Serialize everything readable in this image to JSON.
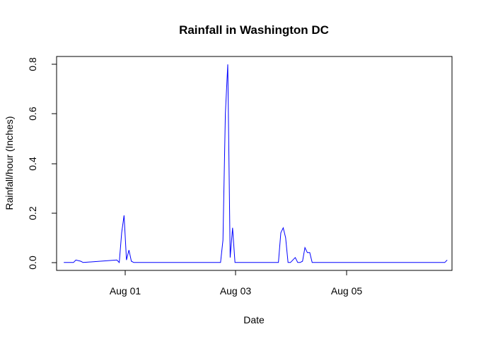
{
  "chart_data": {
    "type": "line",
    "title": "Rainfall in Washington DC",
    "xlabel": "Date",
    "ylabel": "Rainfall/hour (Inches)",
    "x_ticks": [
      {
        "date": "2012-08-01",
        "label": "Aug 01"
      },
      {
        "date": "2012-08-03",
        "label": "Aug 03"
      },
      {
        "date": "2012-08-05",
        "label": "Aug 05"
      }
    ],
    "y_ticks": [
      {
        "value": 0.0,
        "label": "0.0"
      },
      {
        "value": 0.2,
        "label": "0.2"
      },
      {
        "value": 0.4,
        "label": "0.4"
      },
      {
        "value": 0.6,
        "label": "0.6"
      },
      {
        "value": 0.8,
        "label": "0.8"
      }
    ],
    "xlim": [
      "2012-07-30T21:00",
      "2012-08-06T17:00"
    ],
    "ylim": [
      -0.032,
      0.832
    ],
    "line_color": "#0000ff",
    "grid": false,
    "legend": "none",
    "series": [
      {
        "x": [
          "2012-07-31T00:00",
          "2012-07-31T04:00",
          "2012-07-31T05:00",
          "2012-07-31T07:00",
          "2012-07-31T08:00",
          "2012-07-31T22:00",
          "2012-07-31T23:00",
          "2012-08-01T00:00",
          "2012-08-01T01:00",
          "2012-08-01T02:00",
          "2012-08-01T03:00",
          "2012-08-01T04:00",
          "2012-08-01T05:00",
          "2012-08-01T06:00",
          "2012-08-01T07:00",
          "2012-08-02T17:00",
          "2012-08-02T18:00",
          "2012-08-02T19:00",
          "2012-08-02T20:00",
          "2012-08-02T21:00",
          "2012-08-02T22:00",
          "2012-08-02T23:00",
          "2012-08-03T17:00",
          "2012-08-03T18:00",
          "2012-08-03T19:00",
          "2012-08-03T20:00",
          "2012-08-03T21:00",
          "2012-08-03T22:00",
          "2012-08-03T23:00",
          "2012-08-04T00:00",
          "2012-08-04T01:00",
          "2012-08-04T02:00",
          "2012-08-04T03:00",
          "2012-08-04T04:00",
          "2012-08-04T05:00",
          "2012-08-04T06:00",
          "2012-08-04T07:00",
          "2012-08-04T08:00",
          "2012-08-06T14:00",
          "2012-08-06T15:00"
        ],
        "values": [
          0,
          0,
          0.01,
          0.005,
          0,
          0.01,
          0,
          0.12,
          0.19,
          0.01,
          0.05,
          0.005,
          0,
          0,
          0,
          0,
          0.09,
          0.6,
          0.8,
          0.02,
          0.14,
          0,
          0,
          0.12,
          0.14,
          0.1,
          0,
          0,
          0.01,
          0.02,
          0,
          0,
          0.005,
          0.06,
          0.04,
          0.04,
          0,
          0,
          0,
          0.01
        ]
      }
    ]
  }
}
